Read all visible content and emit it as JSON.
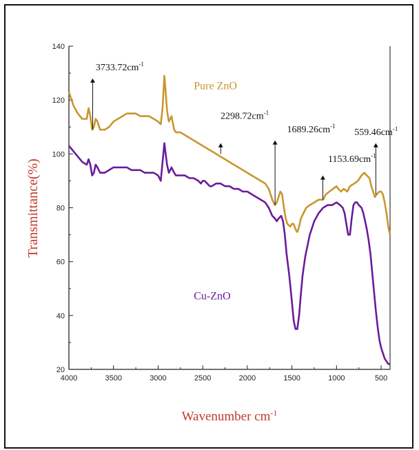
{
  "chart_data": {
    "type": "line",
    "ylabel": "Transmittance(%)",
    "xlabel_base": "Wavenumber cm",
    "xlabel_sup": "-1",
    "xlim": [
      4000,
      400
    ],
    "ylim": [
      20,
      140
    ],
    "xticks": [
      4000,
      3500,
      3000,
      2500,
      2000,
      1500,
      1000,
      500
    ],
    "yticks": [
      20,
      40,
      60,
      80,
      100,
      120,
      140
    ],
    "colors": {
      "pure": "#c8962e",
      "cu": "#6a1b9a",
      "axis": "#222222",
      "axis_label": "#c0392b"
    },
    "series": [
      {
        "name": "Pure ZnO",
        "color": "#c8962e",
        "points": [
          [
            4000,
            123
          ],
          [
            3950,
            118
          ],
          [
            3900,
            115
          ],
          [
            3850,
            113
          ],
          [
            3800,
            113
          ],
          [
            3780,
            117
          ],
          [
            3760,
            114
          ],
          [
            3740,
            109
          ],
          [
            3720,
            110
          ],
          [
            3700,
            113
          ],
          [
            3680,
            112
          ],
          [
            3650,
            109
          ],
          [
            3600,
            109
          ],
          [
            3550,
            110
          ],
          [
            3500,
            112
          ],
          [
            3450,
            113
          ],
          [
            3400,
            114
          ],
          [
            3350,
            115
          ],
          [
            3300,
            115
          ],
          [
            3250,
            115
          ],
          [
            3200,
            114
          ],
          [
            3150,
            114
          ],
          [
            3100,
            114
          ],
          [
            3050,
            113
          ],
          [
            3000,
            112
          ],
          [
            2970,
            111
          ],
          [
            2950,
            117
          ],
          [
            2930,
            129
          ],
          [
            2915,
            123
          ],
          [
            2900,
            116
          ],
          [
            2880,
            112
          ],
          [
            2850,
            114
          ],
          [
            2820,
            109
          ],
          [
            2800,
            108
          ],
          [
            2750,
            108
          ],
          [
            2700,
            107
          ],
          [
            2650,
            106
          ],
          [
            2600,
            105
          ],
          [
            2550,
            104
          ],
          [
            2500,
            103
          ],
          [
            2450,
            102
          ],
          [
            2400,
            101
          ],
          [
            2350,
            100
          ],
          [
            2300,
            99
          ],
          [
            2250,
            98
          ],
          [
            2200,
            97
          ],
          [
            2150,
            96
          ],
          [
            2100,
            95
          ],
          [
            2050,
            94
          ],
          [
            2000,
            93
          ],
          [
            1950,
            92
          ],
          [
            1900,
            91
          ],
          [
            1850,
            90
          ],
          [
            1800,
            89
          ],
          [
            1760,
            87
          ],
          [
            1720,
            83
          ],
          [
            1690,
            81
          ],
          [
            1670,
            82
          ],
          [
            1650,
            84
          ],
          [
            1630,
            86
          ],
          [
            1610,
            85
          ],
          [
            1590,
            80
          ],
          [
            1570,
            76
          ],
          [
            1550,
            74
          ],
          [
            1520,
            73
          ],
          [
            1500,
            74
          ],
          [
            1480,
            74
          ],
          [
            1460,
            72
          ],
          [
            1440,
            71
          ],
          [
            1420,
            73
          ],
          [
            1400,
            76
          ],
          [
            1370,
            78
          ],
          [
            1340,
            80
          ],
          [
            1300,
            81
          ],
          [
            1250,
            82
          ],
          [
            1200,
            83
          ],
          [
            1150,
            83
          ],
          [
            1120,
            85
          ],
          [
            1080,
            86
          ],
          [
            1040,
            87
          ],
          [
            1000,
            88
          ],
          [
            980,
            87
          ],
          [
            950,
            86
          ],
          [
            920,
            87
          ],
          [
            880,
            86
          ],
          [
            850,
            88
          ],
          [
            800,
            89
          ],
          [
            760,
            90
          ],
          [
            720,
            92
          ],
          [
            690,
            93
          ],
          [
            660,
            92
          ],
          [
            630,
            91
          ],
          [
            610,
            88
          ],
          [
            590,
            86
          ],
          [
            570,
            84
          ],
          [
            550,
            85
          ],
          [
            520,
            86
          ],
          [
            500,
            86
          ],
          [
            480,
            85
          ],
          [
            460,
            82
          ],
          [
            440,
            78
          ],
          [
            420,
            73
          ],
          [
            400,
            70
          ]
        ]
      },
      {
        "name": "Cu-ZnO",
        "color": "#6a1b9a",
        "points": [
          [
            4000,
            103
          ],
          [
            3950,
            101
          ],
          [
            3900,
            99
          ],
          [
            3850,
            97
          ],
          [
            3800,
            96
          ],
          [
            3780,
            98
          ],
          [
            3760,
            96
          ],
          [
            3740,
            92
          ],
          [
            3720,
            93
          ],
          [
            3700,
            96
          ],
          [
            3680,
            95
          ],
          [
            3650,
            93
          ],
          [
            3600,
            93
          ],
          [
            3550,
            94
          ],
          [
            3500,
            95
          ],
          [
            3450,
            95
          ],
          [
            3400,
            95
          ],
          [
            3350,
            95
          ],
          [
            3300,
            94
          ],
          [
            3250,
            94
          ],
          [
            3200,
            94
          ],
          [
            3150,
            93
          ],
          [
            3100,
            93
          ],
          [
            3050,
            93
          ],
          [
            3000,
            92
          ],
          [
            2970,
            90
          ],
          [
            2950,
            97
          ],
          [
            2930,
            104
          ],
          [
            2915,
            100
          ],
          [
            2900,
            96
          ],
          [
            2880,
            93
          ],
          [
            2850,
            95
          ],
          [
            2820,
            93
          ],
          [
            2800,
            92
          ],
          [
            2750,
            92
          ],
          [
            2700,
            92
          ],
          [
            2650,
            91
          ],
          [
            2600,
            91
          ],
          [
            2550,
            90
          ],
          [
            2520,
            89
          ],
          [
            2500,
            90
          ],
          [
            2480,
            90
          ],
          [
            2450,
            89
          ],
          [
            2420,
            88
          ],
          [
            2400,
            88
          ],
          [
            2350,
            89
          ],
          [
            2300,
            89
          ],
          [
            2250,
            88
          ],
          [
            2200,
            88
          ],
          [
            2150,
            87
          ],
          [
            2100,
            87
          ],
          [
            2050,
            86
          ],
          [
            2000,
            86
          ],
          [
            1950,
            85
          ],
          [
            1900,
            84
          ],
          [
            1850,
            83
          ],
          [
            1800,
            82
          ],
          [
            1760,
            80
          ],
          [
            1720,
            77
          ],
          [
            1690,
            76
          ],
          [
            1670,
            75
          ],
          [
            1650,
            76
          ],
          [
            1620,
            77
          ],
          [
            1600,
            75
          ],
          [
            1580,
            70
          ],
          [
            1560,
            63
          ],
          [
            1530,
            55
          ],
          [
            1500,
            45
          ],
          [
            1480,
            38
          ],
          [
            1460,
            35
          ],
          [
            1440,
            35
          ],
          [
            1420,
            40
          ],
          [
            1400,
            48
          ],
          [
            1380,
            55
          ],
          [
            1350,
            62
          ],
          [
            1300,
            70
          ],
          [
            1250,
            75
          ],
          [
            1200,
            78
          ],
          [
            1150,
            80
          ],
          [
            1100,
            81
          ],
          [
            1050,
            81
          ],
          [
            1000,
            82
          ],
          [
            960,
            81
          ],
          [
            930,
            80
          ],
          [
            910,
            78
          ],
          [
            890,
            74
          ],
          [
            870,
            70
          ],
          [
            850,
            70
          ],
          [
            830,
            76
          ],
          [
            810,
            81
          ],
          [
            790,
            82
          ],
          [
            770,
            82
          ],
          [
            750,
            81
          ],
          [
            720,
            80
          ],
          [
            700,
            78
          ],
          [
            680,
            75
          ],
          [
            660,
            72
          ],
          [
            640,
            68
          ],
          [
            620,
            63
          ],
          [
            600,
            56
          ],
          [
            580,
            49
          ],
          [
            560,
            42
          ],
          [
            540,
            36
          ],
          [
            520,
            31
          ],
          [
            500,
            28
          ],
          [
            480,
            26
          ],
          [
            460,
            24
          ],
          [
            440,
            23
          ],
          [
            420,
            22
          ],
          [
            400,
            22
          ]
        ]
      }
    ],
    "series_labels": [
      {
        "text": "Pure ZnO",
        "x": 2600,
        "y": 124
      },
      {
        "text": "Cu-ZnO",
        "x": 2600,
        "y": 46
      }
    ],
    "annotations": [
      {
        "value": "3733.72",
        "unit": "cm",
        "sup": "-1",
        "x": 3733.72,
        "y_from": 109,
        "y_to": 128,
        "label_x": 3700,
        "label_y": 131
      },
      {
        "value": "2298.72",
        "unit": "cm",
        "sup": "-1",
        "x": 2298.72,
        "y_from": 100,
        "y_to": 104,
        "label_x": 2300,
        "label_y": 113
      },
      {
        "value": "1689.26",
        "unit": "cm",
        "sup": "-1",
        "x": 1689.26,
        "y_from": 81,
        "y_to": 105,
        "label_x": 1555,
        "label_y": 108
      },
      {
        "value": "1153.69",
        "unit": "cm",
        "sup": "-1",
        "x": 1153.69,
        "y_from": 83,
        "y_to": 92,
        "label_x": 1095,
        "label_y": 97
      },
      {
        "value": "559.46",
        "unit": "cm",
        "sup": "-1",
        "x": 559.46,
        "y_from": 85,
        "y_to": 104,
        "label_x": 800,
        "label_y": 107
      }
    ]
  }
}
